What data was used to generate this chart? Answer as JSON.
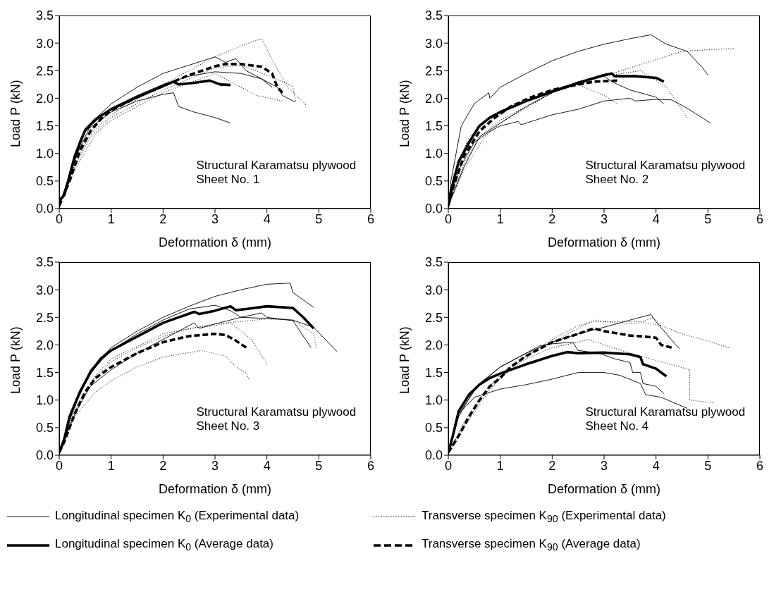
{
  "chart_data": [
    {
      "type": "line",
      "xlabel": "Deformation δ (mm)",
      "ylabel": "Load P (kN)",
      "annotations": [
        "Structural Karamatsu plywood",
        "Sheet No. 1"
      ],
      "xlim": [
        0,
        6
      ],
      "ylim": [
        0,
        3.5
      ],
      "xticks": [
        0,
        1,
        2,
        3,
        4,
        5,
        6
      ],
      "yticks": [
        {
          "value": 0,
          "label": "0.0"
        },
        {
          "value": 0.5,
          "label": "0.5"
        },
        {
          "value": 1,
          "label": "1.0"
        },
        {
          "value": 1.5,
          "label": "1.5"
        },
        {
          "value": 2,
          "label": "2.0"
        },
        {
          "value": 2.5,
          "label": "2.5"
        },
        {
          "value": 3,
          "label": "3.0"
        },
        {
          "value": 3.5,
          "label": "3.5"
        }
      ],
      "series": [
        {
          "line_style": "solid",
          "color": "#000000",
          "x": [
            0,
            0.2,
            0.5,
            1,
            1.5,
            2,
            2.5,
            3,
            3.2,
            3.4,
            3.6,
            3.9,
            4.2,
            4.3,
            4.55
          ],
          "values": [
            0.05,
            0.6,
            1.45,
            1.9,
            2.2,
            2.45,
            2.6,
            2.75,
            2.65,
            2.72,
            2.5,
            2.35,
            2.2,
            2.05,
            1.93
          ]
        },
        {
          "line_style": "solid",
          "color": "#000000",
          "x": [
            0,
            0.2,
            0.5,
            1,
            1.5,
            2,
            2.2,
            2.3,
            2.6,
            3,
            3.3
          ],
          "values": [
            0.05,
            0.6,
            1.4,
            1.75,
            1.95,
            2.07,
            2.1,
            1.85,
            1.75,
            1.65,
            1.55
          ]
        },
        {
          "line_style": "solid",
          "color": "#000000",
          "x": [
            0,
            0.3,
            0.6,
            1,
            1.5,
            2,
            2.5,
            3,
            3.5,
            3.9,
            4.1
          ],
          "values": [
            0.05,
            0.9,
            1.5,
            1.82,
            2.05,
            2.25,
            2.4,
            2.48,
            2.45,
            2.35,
            2.2
          ]
        },
        {
          "line_style": "dotted",
          "color": "#000000",
          "x": [
            0,
            0.3,
            0.6,
            1,
            2,
            3,
            3.5,
            3.9,
            4.1,
            4.4,
            4.75
          ],
          "values": [
            0.05,
            0.8,
            1.35,
            1.7,
            2.25,
            2.75,
            2.95,
            3.08,
            2.7,
            2.2,
            1.88
          ]
        },
        {
          "line_style": "dotted",
          "color": "#000000",
          "x": [
            0,
            0.3,
            0.6,
            1,
            2,
            3,
            3.5,
            4,
            4.5,
            4.55
          ],
          "values": [
            0.05,
            0.75,
            1.3,
            1.65,
            2.15,
            2.55,
            2.6,
            2.42,
            2.22,
            1.95
          ]
        },
        {
          "line_style": "dotted",
          "color": "#000000",
          "x": [
            0,
            0.3,
            0.7,
            1,
            2,
            3,
            3.5,
            3.8,
            4.3
          ],
          "values": [
            0.05,
            0.7,
            1.35,
            1.6,
            2.1,
            2.45,
            2.2,
            2.05,
            1.95
          ]
        },
        {
          "line_style": "solid",
          "color": "#000000",
          "x": [
            0,
            0.1,
            0.2,
            0.3,
            0.4,
            0.5,
            0.7,
            1,
            1.5,
            2,
            2.2,
            2.3,
            2.6,
            2.9,
            3.1,
            3.3
          ],
          "values": [
            0.15,
            0.25,
            0.6,
            0.95,
            1.2,
            1.42,
            1.62,
            1.8,
            2.02,
            2.22,
            2.3,
            2.25,
            2.28,
            2.32,
            2.25,
            2.24
          ]
        },
        {
          "line_style": "dashed",
          "color": "#000000",
          "x": [
            0,
            0.2,
            0.4,
            0.6,
            0.8,
            1,
            1.5,
            2,
            2.5,
            3,
            3.2,
            3.5,
            3.9,
            4.1,
            4.2,
            4.3
          ],
          "values": [
            0.05,
            0.5,
            1.05,
            1.4,
            1.62,
            1.78,
            2.02,
            2.22,
            2.42,
            2.58,
            2.62,
            2.62,
            2.57,
            2.45,
            2.2,
            2.1
          ]
        }
      ]
    },
    {
      "type": "line",
      "xlabel": "Deformation δ (mm)",
      "ylabel": "Load P (kN)",
      "annotations": [
        "Structural Karamatsu plywood",
        "Sheet No. 2"
      ],
      "xlim": [
        0,
        6
      ],
      "ylim": [
        0,
        3.5
      ],
      "xticks": [
        0,
        1,
        2,
        3,
        4,
        5,
        6
      ],
      "yticks": [
        {
          "value": 0,
          "label": "0.0"
        },
        {
          "value": 0.5,
          "label": "0.5"
        },
        {
          "value": 1,
          "label": "1.0"
        },
        {
          "value": 1.5,
          "label": "1.5"
        },
        {
          "value": 2,
          "label": "2.0"
        },
        {
          "value": 2.5,
          "label": "2.5"
        },
        {
          "value": 3,
          "label": "3.0"
        },
        {
          "value": 3.5,
          "label": "3.5"
        }
      ],
      "series": [
        {
          "line_style": "solid",
          "color": "#000000",
          "x": [
            0,
            0.05,
            0.15,
            0.25,
            0.5,
            0.78,
            0.8,
            1,
            1.5,
            2,
            2.5,
            3,
            3.5,
            3.9,
            4.2,
            4.6,
            4.9,
            5
          ],
          "values": [
            0.05,
            0.5,
            1,
            1.5,
            1.9,
            2.1,
            2,
            2.2,
            2.45,
            2.68,
            2.85,
            2.98,
            3.08,
            3.15,
            2.98,
            2.85,
            2.55,
            2.42
          ]
        },
        {
          "line_style": "solid",
          "color": "#000000",
          "x": [
            0,
            0.2,
            0.5,
            0.8,
            1,
            1.35,
            1.4,
            2,
            2.5,
            3,
            3.5,
            3.6,
            4,
            4.3,
            4.6,
            5.05
          ],
          "values": [
            0.05,
            0.7,
            1.2,
            1.4,
            1.5,
            1.58,
            1.52,
            1.7,
            1.8,
            1.95,
            2,
            1.95,
            1.98,
            1.97,
            1.82,
            1.55
          ]
        },
        {
          "line_style": "solid",
          "color": "#000000",
          "x": [
            0,
            0.3,
            0.6,
            1,
            1.5,
            2,
            2.5,
            3,
            3.15,
            3.5,
            4,
            4.15
          ],
          "values": [
            0.05,
            0.75,
            1.3,
            1.55,
            1.85,
            2.1,
            2.3,
            2.4,
            2.3,
            2.15,
            2.02,
            1.9
          ]
        },
        {
          "line_style": "dotted",
          "color": "#000000",
          "x": [
            0,
            0.3,
            0.6,
            1,
            2,
            3,
            4,
            4.5,
            5,
            5.5
          ],
          "values": [
            0.05,
            0.8,
            1.3,
            1.6,
            2.1,
            2.4,
            2.7,
            2.85,
            2.88,
            2.9
          ]
        },
        {
          "line_style": "dotted",
          "color": "#000000",
          "x": [
            0,
            0.1,
            0.4,
            1,
            2,
            2.5,
            3,
            3.25
          ],
          "values": [
            0.05,
            0.6,
            1.3,
            1.75,
            2.15,
            2.25,
            2.05,
            1.9
          ]
        },
        {
          "line_style": "dotted",
          "color": "#000000",
          "x": [
            0,
            0.3,
            0.7,
            1,
            2,
            3,
            3.7,
            4.2,
            4.6
          ],
          "values": [
            0.05,
            0.7,
            1.3,
            1.55,
            2.1,
            2.4,
            2.5,
            2.2,
            1.65
          ]
        },
        {
          "line_style": "solid",
          "color": "#000000",
          "x": [
            0,
            0.1,
            0.2,
            0.4,
            0.6,
            0.8,
            1,
            1.5,
            2,
            2.5,
            3,
            3.15,
            3.2,
            3.6,
            4,
            4.15
          ],
          "values": [
            0.1,
            0.5,
            0.85,
            1.2,
            1.5,
            1.65,
            1.75,
            1.95,
            2.12,
            2.28,
            2.42,
            2.45,
            2.4,
            2.4,
            2.37,
            2.3
          ]
        },
        {
          "line_style": "dashed",
          "color": "#000000",
          "x": [
            0,
            0.1,
            0.3,
            0.6,
            0.9,
            1.2,
            1.6,
            2,
            2.5,
            2.8,
            3.25
          ],
          "values": [
            0.05,
            0.4,
            0.95,
            1.4,
            1.65,
            1.85,
            2.02,
            2.15,
            2.25,
            2.3,
            2.32
          ]
        }
      ]
    },
    {
      "type": "line",
      "xlabel": "Deformation δ (mm)",
      "ylabel": "Load P (kN)",
      "annotations": [
        "Structural Karamatsu plywood",
        "Sheet No. 3"
      ],
      "xlim": [
        0,
        6
      ],
      "ylim": [
        0,
        3.5
      ],
      "xticks": [
        0,
        1,
        2,
        3,
        4,
        5,
        6
      ],
      "yticks": [
        {
          "value": 0,
          "label": "0.0"
        },
        {
          "value": 0.5,
          "label": "0.5"
        },
        {
          "value": 1,
          "label": "1.0"
        },
        {
          "value": 1.5,
          "label": "1.5"
        },
        {
          "value": 2,
          "label": "2.0"
        },
        {
          "value": 2.5,
          "label": "2.5"
        },
        {
          "value": 3,
          "label": "3.0"
        },
        {
          "value": 3.5,
          "label": "3.5"
        }
      ],
      "series": [
        {
          "line_style": "solid",
          "color": "#000000",
          "x": [
            0,
            0.3,
            0.6,
            1,
            1.5,
            2,
            2.5,
            3,
            3.5,
            4,
            4.45,
            4.5,
            4.9
          ],
          "values": [
            0.05,
            0.95,
            1.55,
            1.95,
            2.25,
            2.5,
            2.7,
            2.88,
            3,
            3.1,
            3.12,
            2.95,
            2.68
          ]
        },
        {
          "line_style": "solid",
          "color": "#000000",
          "x": [
            0,
            0.3,
            0.6,
            1,
            1.5,
            2,
            2.5,
            3,
            3.3,
            3.5,
            4,
            4.5,
            4.9,
            5.35
          ],
          "values": [
            0.05,
            0.9,
            1.5,
            1.9,
            2.2,
            2.45,
            2.65,
            2.72,
            2.62,
            2.5,
            2.48,
            2.45,
            2.32,
            1.88
          ]
        },
        {
          "line_style": "solid",
          "color": "#000000",
          "x": [
            0,
            0.3,
            0.6,
            1,
            1.5,
            2,
            2.6,
            2.7,
            3,
            3.5,
            3.9,
            4,
            4.5,
            4.85
          ],
          "values": [
            0.05,
            0.75,
            1.25,
            1.55,
            1.85,
            2.1,
            2.4,
            2.3,
            2.38,
            2.5,
            2.58,
            2.5,
            2.44,
            1.95
          ]
        },
        {
          "line_style": "dotted",
          "color": "#000000",
          "x": [
            0,
            0.3,
            0.7,
            1,
            1.5,
            2,
            2.75,
            3,
            3.2,
            3.4,
            3.6,
            3.65
          ],
          "values": [
            0.05,
            0.7,
            1.15,
            1.35,
            1.6,
            1.78,
            1.9,
            1.84,
            1.8,
            1.6,
            1.5,
            1.38
          ]
        },
        {
          "line_style": "dotted",
          "color": "#000000",
          "x": [
            0,
            0.3,
            0.7,
            1,
            1.5,
            2,
            2.5,
            3,
            3.3,
            3.7,
            4
          ],
          "values": [
            0.05,
            0.8,
            1.4,
            1.7,
            1.95,
            2.15,
            2.3,
            2.35,
            2.4,
            2.1,
            1.65
          ]
        },
        {
          "line_style": "dotted",
          "color": "#000000",
          "x": [
            0,
            0.3,
            0.7,
            1,
            2,
            3,
            4,
            4.5,
            4.9,
            4.95
          ],
          "values": [
            0.05,
            0.85,
            1.45,
            1.75,
            2.2,
            2.38,
            2.47,
            2.45,
            2.2,
            1.95
          ]
        },
        {
          "line_style": "solid",
          "color": "#000000",
          "x": [
            0,
            0.1,
            0.2,
            0.4,
            0.6,
            0.8,
            1,
            1.5,
            2,
            2.6,
            2.7,
            3,
            3.3,
            3.4,
            3.6,
            4,
            4.5,
            4.7,
            4.9
          ],
          "values": [
            0.05,
            0.3,
            0.7,
            1.15,
            1.5,
            1.75,
            1.9,
            2.15,
            2.4,
            2.6,
            2.56,
            2.62,
            2.7,
            2.63,
            2.65,
            2.7,
            2.67,
            2.5,
            2.3
          ]
        },
        {
          "line_style": "dashed",
          "color": "#000000",
          "x": [
            0,
            0.1,
            0.3,
            0.5,
            0.7,
            1,
            1.5,
            2,
            2.5,
            3,
            3.2,
            3.4,
            3.6
          ],
          "values": [
            0.05,
            0.25,
            0.75,
            1.15,
            1.4,
            1.6,
            1.85,
            2.05,
            2.16,
            2.2,
            2.18,
            2.08,
            1.95
          ]
        }
      ]
    },
    {
      "type": "line",
      "xlabel": "Deformation δ (mm)",
      "ylabel": "Load P (kN)",
      "annotations": [
        "Structural Karamatsu plywood",
        "Sheet No. 4"
      ],
      "legend": "bottom",
      "xlim": [
        0,
        6
      ],
      "ylim": [
        0,
        3.5
      ],
      "xticks": [
        0,
        1,
        2,
        3,
        4,
        5,
        6
      ],
      "yticks": [
        {
          "value": 0,
          "label": "0.0"
        },
        {
          "value": 0.5,
          "label": "0.5"
        },
        {
          "value": 1,
          "label": "1.0"
        },
        {
          "value": 1.5,
          "label": "1.5"
        },
        {
          "value": 2,
          "label": "2.0"
        },
        {
          "value": 2.5,
          "label": "2.5"
        },
        {
          "value": 3,
          "label": "3.0"
        },
        {
          "value": 3.5,
          "label": "3.5"
        }
      ],
      "series": [
        {
          "name": "Longitudinal specimen K$_{0}$ (Experimental data)",
          "line_style": "solid",
          "color": "#000000",
          "x": [
            0,
            0.2,
            0.5,
            1,
            1.5,
            2,
            2.5,
            3,
            3.5,
            3.9,
            4,
            4.2,
            4.45
          ],
          "values": [
            0.05,
            0.7,
            1.2,
            1.6,
            1.85,
            2.05,
            2.2,
            2.32,
            2.45,
            2.55,
            2.42,
            2.2,
            1.93
          ]
        },
        {
          "line_style": "solid",
          "color": "#000000",
          "x": [
            0,
            0.2,
            0.6,
            1,
            1.5,
            1.75,
            2,
            2.4,
            2.5,
            2.9,
            3.2,
            3.5,
            3.55,
            3.7,
            3.75,
            4,
            4.15
          ],
          "values": [
            0.05,
            0.75,
            1.3,
            1.6,
            1.85,
            1.98,
            2.02,
            2.05,
            1.9,
            1.85,
            1.75,
            1.68,
            1.5,
            1.5,
            1.3,
            1.25,
            1.12
          ]
        },
        {
          "line_style": "solid",
          "color": "#000000",
          "x": [
            0,
            0.2,
            0.5,
            1,
            1.5,
            2,
            2.5,
            3,
            3.3,
            3.7,
            3.8,
            4.1,
            4.6
          ],
          "values": [
            0.05,
            0.75,
            1.05,
            1.2,
            1.28,
            1.38,
            1.5,
            1.5,
            1.45,
            1.3,
            1.1,
            1.05,
            0.85
          ]
        },
        {
          "name": "Transverse specimen K$_{90}$ (Experimental data)",
          "line_style": "dotted",
          "color": "#000000",
          "x": [
            0,
            0.3,
            0.7,
            1,
            1.5,
            2,
            2.5,
            2.8,
            3.2,
            3.7,
            4.1,
            4.5,
            5,
            5.4
          ],
          "values": [
            0.05,
            0.5,
            1.05,
            1.4,
            1.8,
            2.1,
            2.35,
            2.42,
            2.42,
            2.42,
            2.35,
            2.2,
            2.07,
            1.95
          ]
        },
        {
          "line_style": "dotted",
          "color": "#000000",
          "x": [
            0,
            0.3,
            0.7,
            1,
            1.5,
            2,
            2.5,
            2.7,
            3,
            3.5,
            4,
            4.65,
            4.65,
            5.1
          ],
          "values": [
            0.05,
            0.55,
            1.1,
            1.4,
            1.75,
            1.95,
            2.05,
            2.1,
            2,
            1.85,
            1.72,
            1.55,
            1,
            0.95
          ]
        },
        {
          "line_style": "dotted",
          "color": "#000000",
          "x": [
            0,
            0.3,
            0.7,
            1,
            1.5,
            2,
            2.5,
            2.8,
            3.2,
            3.6,
            3.95,
            4.1
          ],
          "values": [
            0.05,
            0.6,
            1.15,
            1.45,
            1.8,
            2.05,
            2.3,
            2.45,
            2.4,
            2.38,
            2.5,
            2.35
          ]
        },
        {
          "name": "Longitudinal specimen K$_{0}$ (Average data)",
          "line_style": "solid",
          "color": "#000000",
          "x": [
            0,
            0.1,
            0.2,
            0.4,
            0.6,
            0.8,
            1,
            1.5,
            2,
            2.3,
            2.5,
            3,
            3.5,
            3.7,
            3.75,
            4,
            4.1,
            4.2
          ],
          "values": [
            0.05,
            0.4,
            0.8,
            1.1,
            1.28,
            1.4,
            1.48,
            1.65,
            1.8,
            1.87,
            1.85,
            1.86,
            1.83,
            1.78,
            1.65,
            1.57,
            1.5,
            1.43
          ]
        },
        {
          "name": "Transverse specimen K$_{90}$ (Average data)",
          "line_style": "dashed",
          "color": "#000000",
          "x": [
            0,
            0.2,
            0.4,
            0.6,
            0.8,
            1,
            1.2,
            1.5,
            2,
            2.5,
            2.8,
            3,
            3.5,
            3.8,
            4,
            4.1,
            4.3
          ],
          "values": [
            0.05,
            0.35,
            0.7,
            1,
            1.25,
            1.4,
            1.6,
            1.8,
            2.05,
            2.2,
            2.3,
            2.25,
            2.17,
            2.15,
            2.13,
            2,
            1.95
          ]
        }
      ]
    }
  ]
}
